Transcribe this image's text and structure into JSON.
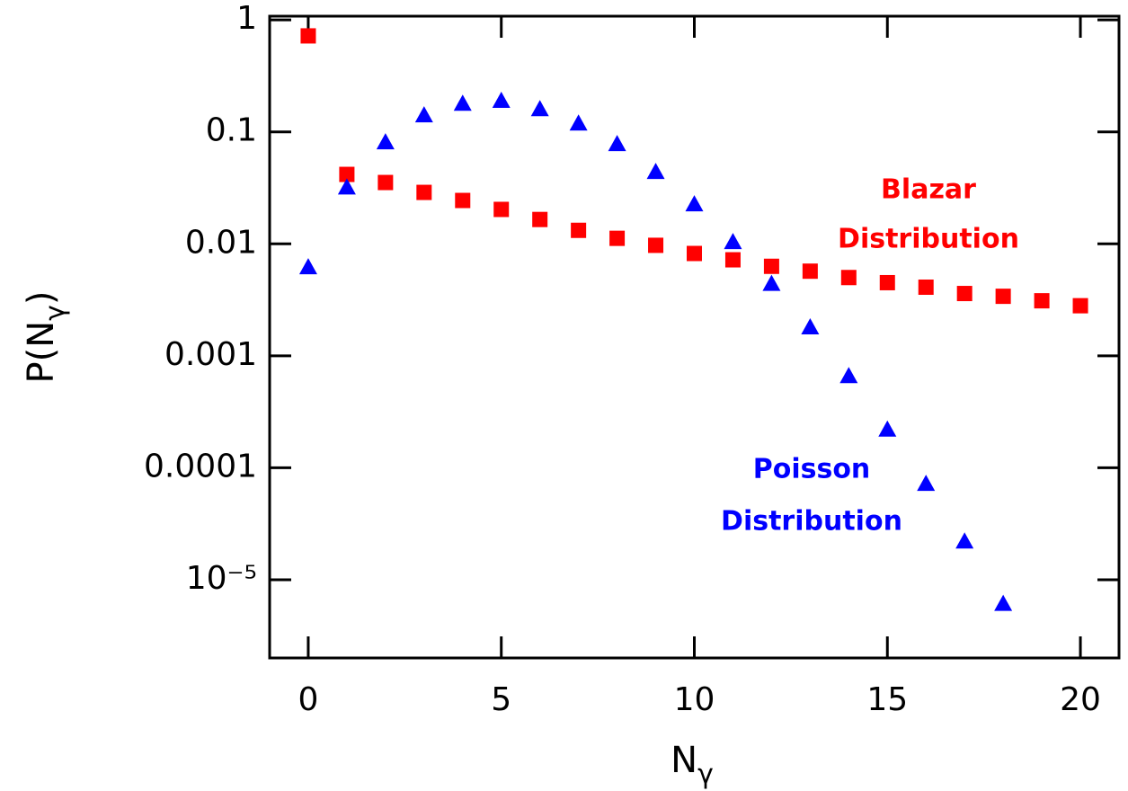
{
  "chart_data": {
    "type": "scatter",
    "xlabel": {
      "base": "N",
      "sub": "γ"
    },
    "ylabel": {
      "base": "P(N",
      "sub": "γ",
      "tail": ")"
    },
    "xlim": [
      -1,
      21
    ],
    "xticks": [
      0,
      5,
      10,
      15,
      20
    ],
    "ylim": [
      2e-06,
      1.08
    ],
    "ylog": true,
    "yticks": [
      1,
      0.1,
      0.01,
      0.001,
      0.0001,
      {
        "value": 1e-05,
        "label": "10⁻⁵"
      }
    ],
    "series": [
      {
        "name": "Blazar Distribution",
        "color": "#ff0000",
        "marker": "square",
        "x": [
          0,
          1,
          2,
          3,
          4,
          5,
          6,
          7,
          8,
          9,
          10,
          11,
          12,
          13,
          14,
          15,
          16,
          17,
          18,
          19,
          20
        ],
        "values": [
          0.72,
          0.0417,
          0.0353,
          0.0288,
          0.0244,
          0.0203,
          0.0165,
          0.0132,
          0.0112,
          0.0097,
          0.0082,
          0.0072,
          0.0063,
          0.0057,
          0.005,
          0.0045,
          0.0041,
          0.0036,
          0.0034,
          0.0031,
          0.0028
        ]
      },
      {
        "name": "Poisson Distribution",
        "color": "#0000ff",
        "marker": "triangle",
        "x": [
          0,
          1,
          2,
          3,
          4,
          5,
          6,
          7,
          8,
          9,
          10,
          11,
          12,
          13,
          14,
          15,
          16,
          17,
          18
        ],
        "values": [
          0.0062,
          0.032,
          0.081,
          0.141,
          0.179,
          0.19,
          0.16,
          0.119,
          0.078,
          0.044,
          0.0226,
          0.0104,
          0.0044,
          0.0018,
          0.00066,
          0.00022,
          7.2e-05,
          2.2e-05,
          6.1e-06
        ]
      }
    ],
    "annotations": [
      {
        "lines": [
          "Blazar",
          "Distribution"
        ],
        "color": "#ff0000"
      },
      {
        "lines": [
          "Poisson",
          "Distribution"
        ],
        "color": "#0000ff"
      }
    ]
  }
}
